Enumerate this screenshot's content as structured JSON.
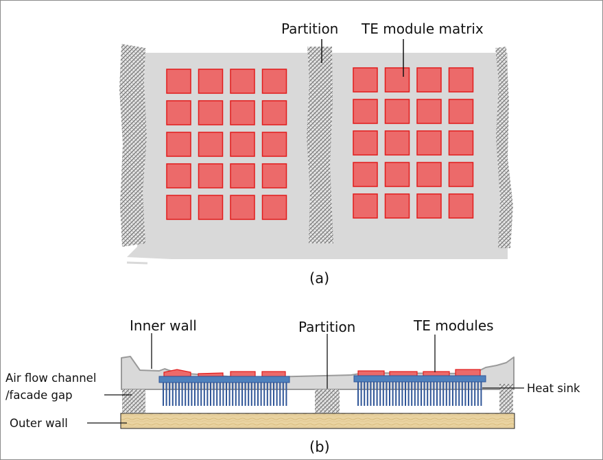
{
  "figure_a": {
    "label_partition": "Partition",
    "label_te_matrix": "TE module matrix",
    "caption": "(a)"
  },
  "figure_b": {
    "label_inner_wall": "Inner wall",
    "label_partition": "Partition",
    "label_te_modules": "TE modules",
    "label_air_channel_line1": "Air flow channel",
    "label_air_channel_line2": "/facade gap",
    "label_heat_sink": "Heat sink",
    "label_outer_wall": "Outer wall",
    "caption": "(b)"
  },
  "colors": {
    "module_fill": "#ec6a6a",
    "module_stroke": "#e11b1b",
    "wall_gray": "#d9d9d9",
    "hatch": "#7d7d7d",
    "heat_sink_base": "#4f81bd",
    "fin": "#2f5597",
    "outer_wall": "#e7cf9c"
  }
}
